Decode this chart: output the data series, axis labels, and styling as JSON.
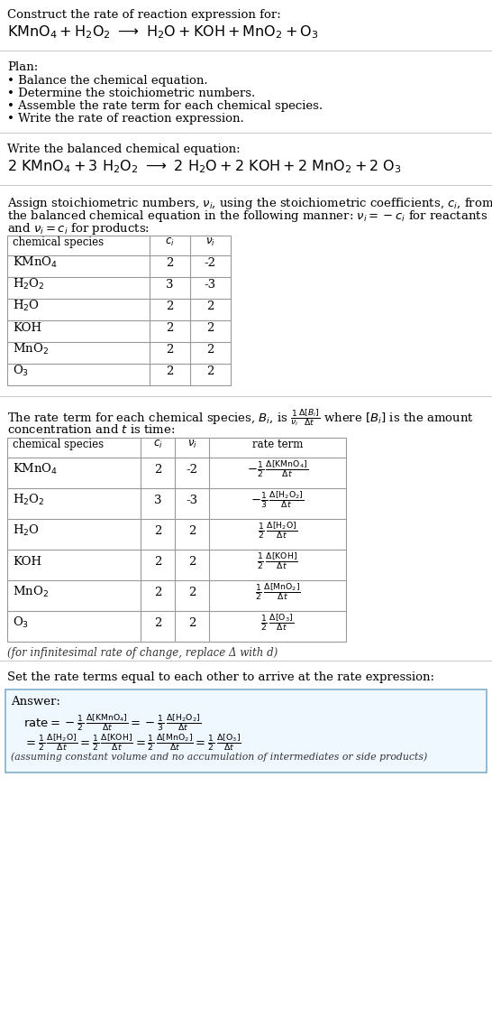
{
  "title": "Construct the rate of reaction expression for:",
  "plan_header": "Plan:",
  "plan_items": [
    "• Balance the chemical equation.",
    "• Determine the stoichiometric numbers.",
    "• Assemble the rate term for each chemical species.",
    "• Write the rate of reaction expression."
  ],
  "balanced_header": "Write the balanced chemical equation:",
  "table1_cols": [
    "chemical species",
    "$c_i$",
    "$\\nu_i$"
  ],
  "table1_data": [
    [
      "KMnO$_4$",
      "2",
      "-2"
    ],
    [
      "H$_2$O$_2$",
      "3",
      "-3"
    ],
    [
      "H$_2$O",
      "2",
      "2"
    ],
    [
      "KOH",
      "2",
      "2"
    ],
    [
      "MnO$_2$",
      "2",
      "2"
    ],
    [
      "O$_3$",
      "2",
      "2"
    ]
  ],
  "table2_cols": [
    "chemical species",
    "$c_i$",
    "$\\nu_i$",
    "rate term"
  ],
  "table2_data": [
    [
      "KMnO$_4$",
      "2",
      "-2",
      "$-\\frac{1}{2}\\,\\frac{\\Delta[\\mathrm{KMnO_4}]}{\\Delta t}$"
    ],
    [
      "H$_2$O$_2$",
      "3",
      "-3",
      "$-\\frac{1}{3}\\,\\frac{\\Delta[\\mathrm{H_2O_2}]}{\\Delta t}$"
    ],
    [
      "H$_2$O",
      "2",
      "2",
      "$\\frac{1}{2}\\,\\frac{\\Delta[\\mathrm{H_2O}]}{\\Delta t}$"
    ],
    [
      "KOH",
      "2",
      "2",
      "$\\frac{1}{2}\\,\\frac{\\Delta[\\mathrm{KOH}]}{\\Delta t}$"
    ],
    [
      "MnO$_2$",
      "2",
      "2",
      "$\\frac{1}{2}\\,\\frac{\\Delta[\\mathrm{MnO_2}]}{\\Delta t}$"
    ],
    [
      "O$_3$",
      "2",
      "2",
      "$\\frac{1}{2}\\,\\frac{\\Delta[\\mathrm{O_3}]}{\\Delta t}$"
    ]
  ],
  "infinitesimal_note": "(for infinitesimal rate of change, replace Δ with d)",
  "set_rate_header": "Set the rate terms equal to each other to arrive at the rate expression:",
  "answer_label": "Answer:",
  "answer_note": "(assuming constant volume and no accumulation of intermediates or side products)",
  "bg_color": "#ffffff",
  "answer_box_bg": "#f0f8ff",
  "answer_box_border": "#7fb0cc",
  "line_color": "#cccccc",
  "table_line_color": "#999999"
}
